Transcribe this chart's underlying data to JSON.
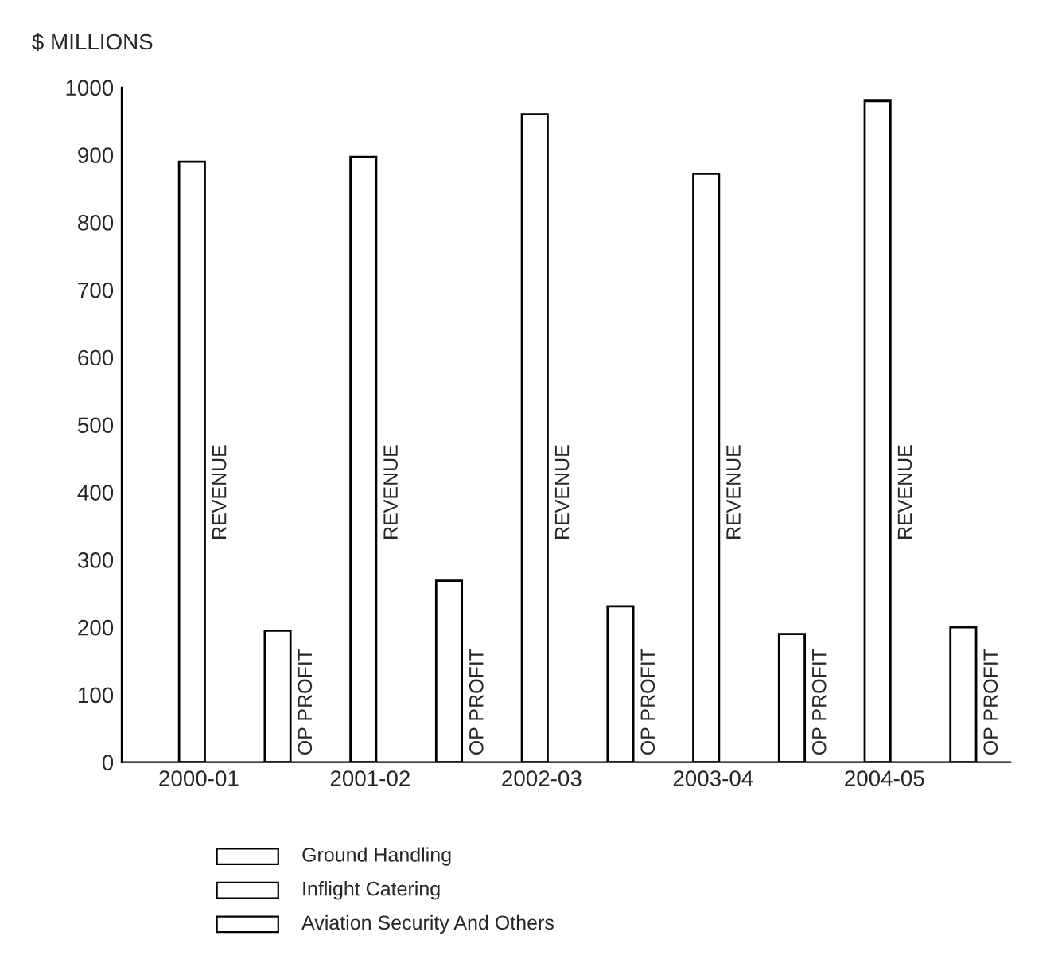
{
  "chart_data": {
    "type": "bar",
    "ylabel": "$ MILLIONS",
    "categories": [
      "2000-01",
      "2001-02",
      "2002-03",
      "2003-04",
      "2004-05"
    ],
    "series": [
      {
        "name": "REVENUE",
        "color": "#ffffff",
        "values": [
          890,
          897,
          960,
          872,
          980
        ]
      },
      {
        "name": "OP PROFIT",
        "color": "#ffffff",
        "values": [
          195,
          269,
          231,
          190,
          200
        ]
      }
    ],
    "ylim": [
      0,
      1000
    ],
    "yticks": [
      0,
      100,
      200,
      300,
      400,
      500,
      600,
      700,
      800,
      900,
      1000
    ],
    "grid": false,
    "legend": false,
    "annotations": [
      "Ground Handling",
      "Inflight Catering",
      "Aviation Security And Others"
    ]
  }
}
